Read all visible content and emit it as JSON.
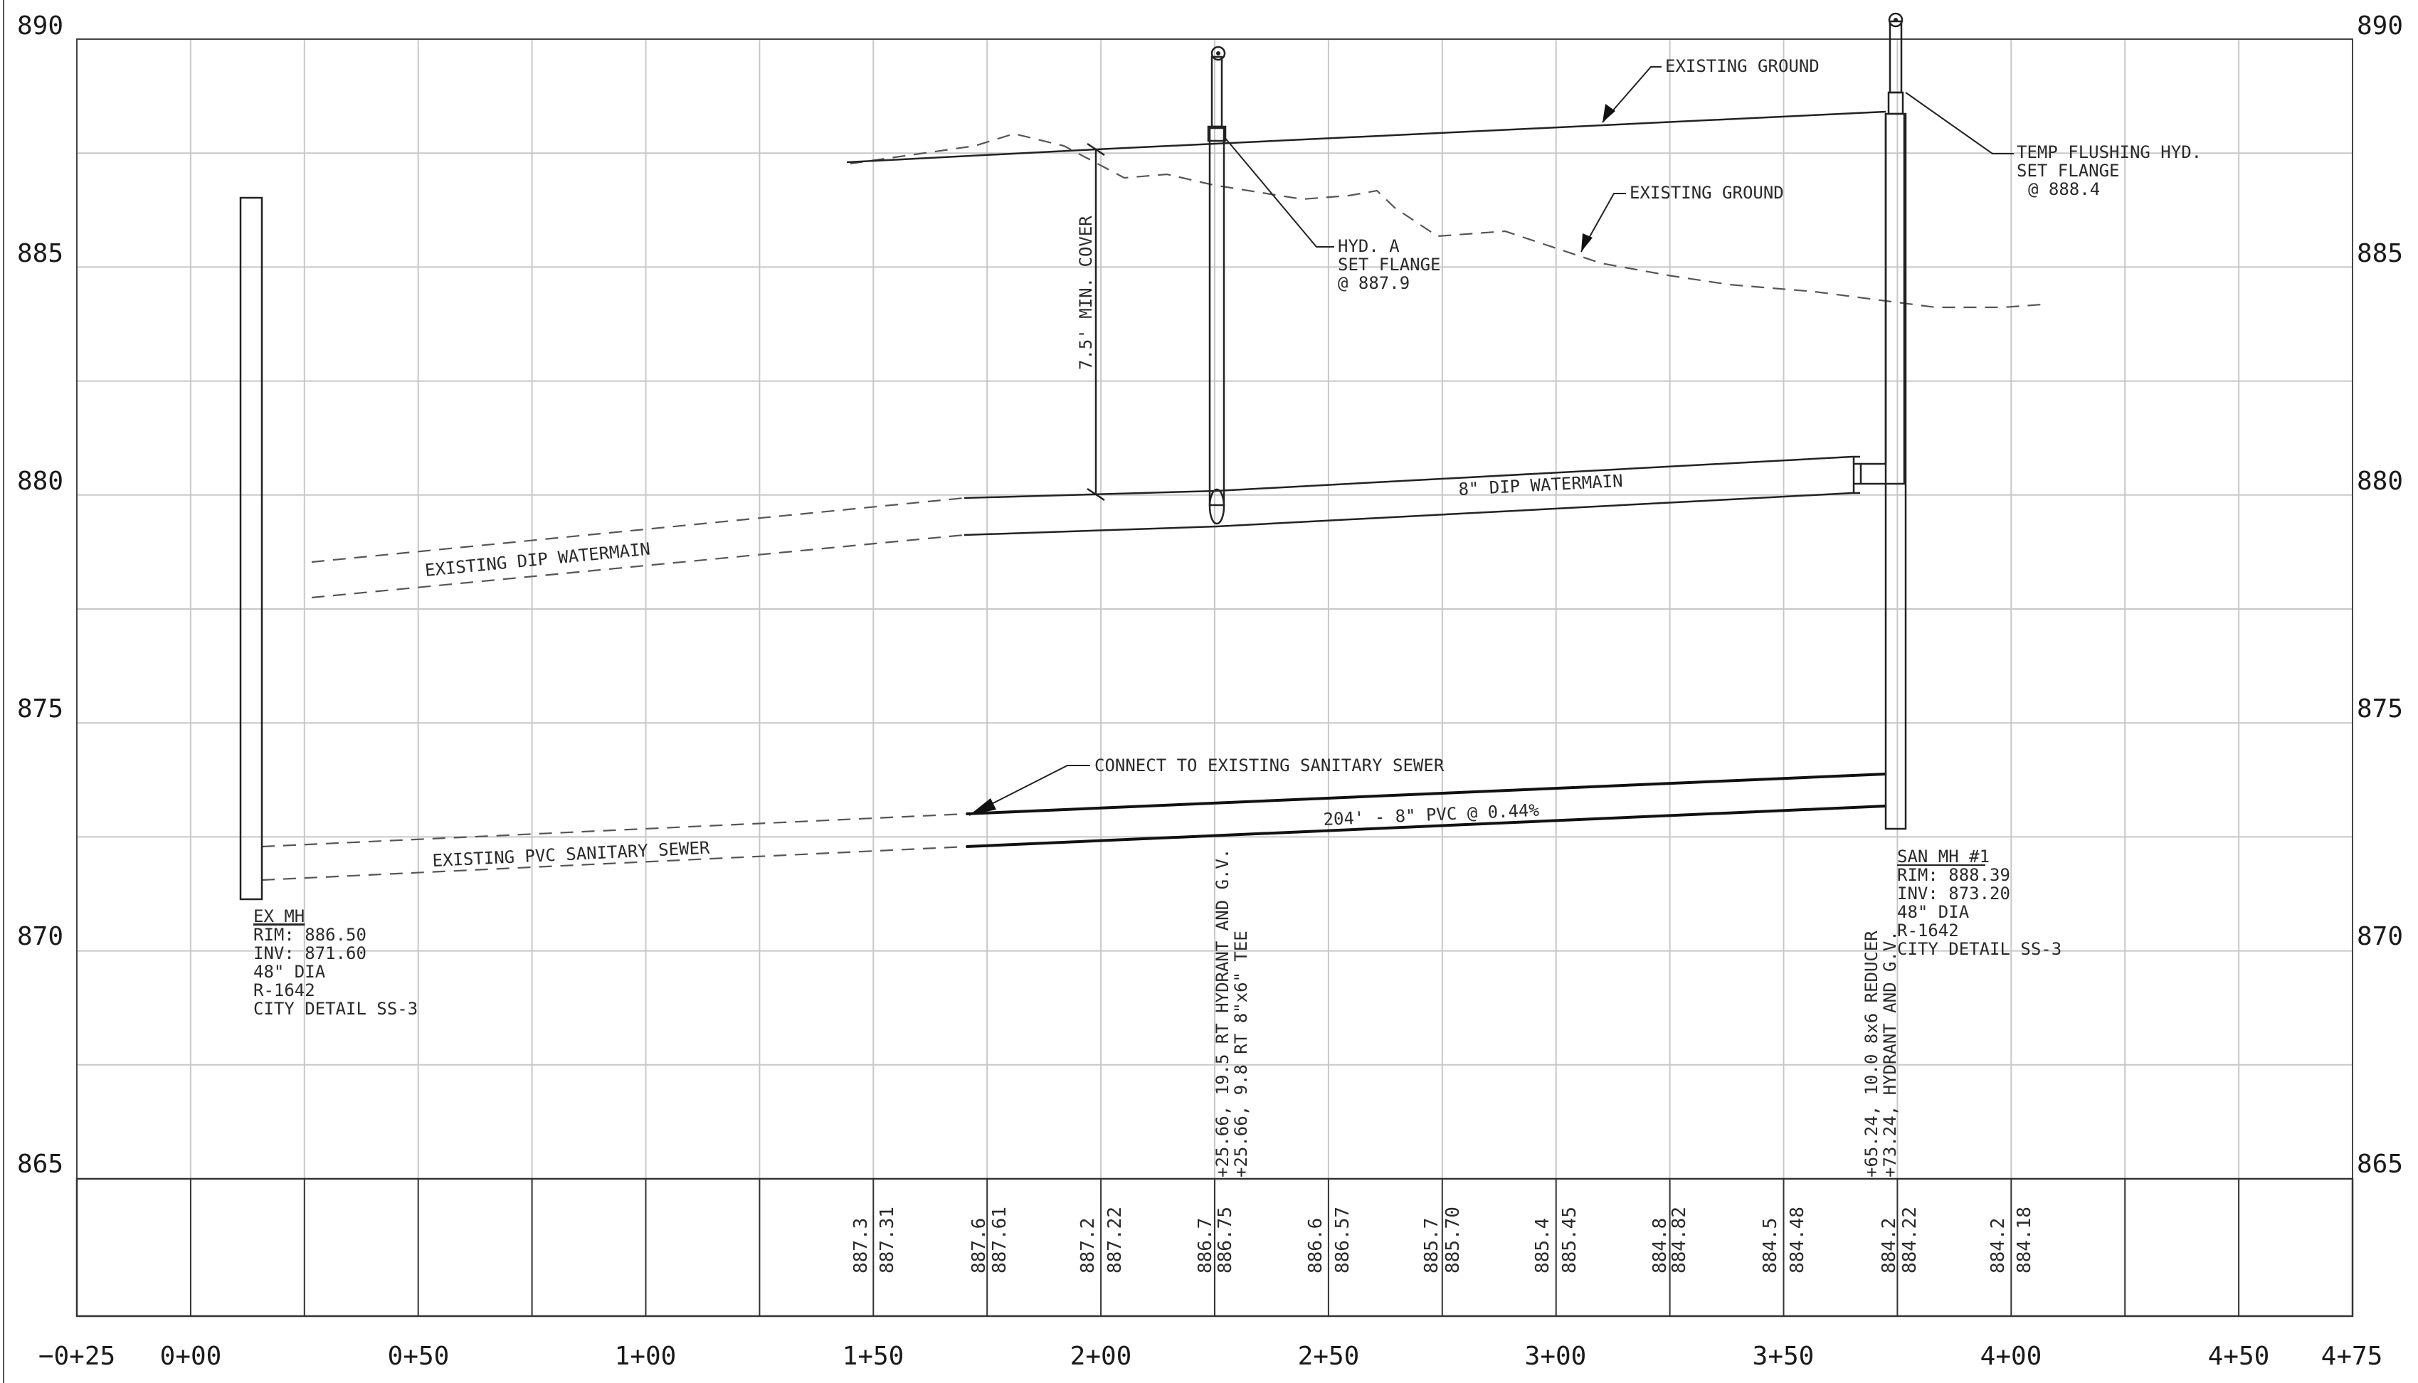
{
  "elevation_axis": {
    "left_labels": [
      "890",
      "885",
      "880",
      "875",
      "870",
      "865"
    ],
    "right_labels": [
      "890",
      "885",
      "880",
      "875",
      "870",
      "865"
    ]
  },
  "station_axis": {
    "labels": [
      "−0+25",
      "0+00",
      "0+50",
      "1+00",
      "1+50",
      "2+00",
      "2+50",
      "3+00",
      "3+50",
      "4+00",
      "4+50",
      "4+75"
    ]
  },
  "elevation_table": [
    {
      "existing": "887.3",
      "proposed": "887.31"
    },
    {
      "existing": "887.6",
      "proposed": "887.61"
    },
    {
      "existing": "887.2",
      "proposed": "887.22"
    },
    {
      "existing": "886.7",
      "proposed": "886.75"
    },
    {
      "existing": "886.6",
      "proposed": "886.57"
    },
    {
      "existing": "885.7",
      "proposed": "885.70"
    },
    {
      "existing": "885.4",
      "proposed": "885.45"
    },
    {
      "existing": "884.8",
      "proposed": "884.82"
    },
    {
      "existing": "884.5",
      "proposed": "884.48"
    },
    {
      "existing": "884.2",
      "proposed": "884.22"
    },
    {
      "existing": "884.2",
      "proposed": "884.18"
    }
  ],
  "labels": {
    "existing_ground_1": "EXISTING GROUND",
    "existing_ground_2": "EXISTING GROUND",
    "temp_hydrant": [
      "TEMP FLUSHING HYD.",
      "SET FLANGE",
      "@ 888.4"
    ],
    "hyd_a": [
      "HYD. A",
      "SET FLANGE",
      "@ 887.9"
    ],
    "min_cover": "7.5' MIN. COVER",
    "dip_watermain": "8\" DIP WATERMAIN",
    "existing_dip": "EXISTING DIP WATERMAIN",
    "connect_sanitary": "CONNECT TO EXISTING SANITARY SEWER",
    "pvc_sewer": "204' - 8\" PVC @ 0.44%",
    "existing_pvc": "EXISTING PVC SANITARY SEWER",
    "ex_mh": [
      "EX MH",
      "RIM: 886.50",
      "INV: 871.60",
      "48\" DIA",
      "R-1642",
      "CITY DETAIL SS-3"
    ],
    "san_mh": [
      "SAN MH #1",
      "RIM: 888.39",
      "INV: 873.20",
      "48\" DIA",
      "R-1642",
      "CITY DETAIL SS-3"
    ],
    "hydrant_callouts": [
      "+25.66, 19.5 RT HYDRANT AND G.V.",
      "+25.66, 9.8 RT 8\"x6\" TEE"
    ],
    "reducer_callouts": [
      "+65.24, 10.0 8x6 REDUCER",
      "+73.24, HYDRANT AND G.V."
    ]
  },
  "colors": {
    "existing_elevation_text": "#b03a3a",
    "proposed_elevation_text": "#2a2a2a",
    "grid": "#c8c8c8",
    "linework": "#222222"
  }
}
